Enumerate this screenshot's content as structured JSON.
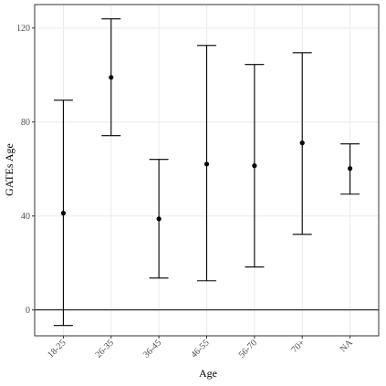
{
  "chart_data": {
    "type": "errorbar",
    "x_label": "Age",
    "y_label": "GATEs Age",
    "categories": [
      "18-25",
      "26-35",
      "36-45",
      "46-55",
      "56-70",
      "70+",
      "NA"
    ],
    "values": [
      41.2,
      99.0,
      38.8,
      62.1,
      61.4,
      71.1,
      60.2
    ],
    "lower": [
      -6.6,
      74.2,
      13.6,
      12.4,
      18.3,
      32.2,
      49.3
    ],
    "upper": [
      89.3,
      123.9,
      64.1,
      112.6,
      104.5,
      109.5,
      70.7
    ],
    "color": "#000000",
    "hline": 0,
    "ylim": [
      -11,
      130
    ],
    "yticks": [
      0,
      40,
      80,
      120
    ],
    "grid": true
  }
}
